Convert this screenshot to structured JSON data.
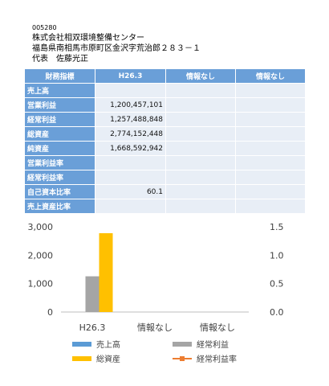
{
  "company": {
    "code": "005280",
    "name": "株式会社相双環境整備センター",
    "address": "福島県南相馬市原町区金沢字荒治郎２８３－１",
    "rep_title": "代表",
    "rep_name": "佐藤光正"
  },
  "table": {
    "headers": [
      "財務指標",
      "H26.3",
      "情報なし",
      "情報なし"
    ],
    "rows": [
      {
        "label": "売上高",
        "values": [
          "",
          "",
          ""
        ]
      },
      {
        "label": "営業利益",
        "values": [
          "1,200,457,101",
          "",
          ""
        ]
      },
      {
        "label": "経常利益",
        "values": [
          "1,257,488,848",
          "",
          ""
        ]
      },
      {
        "label": "総資産",
        "values": [
          "2,774,152,448",
          "",
          ""
        ]
      },
      {
        "label": "純資産",
        "values": [
          "1,668,592,942",
          "",
          ""
        ]
      },
      {
        "label": "営業利益率",
        "values": [
          "",
          "",
          ""
        ]
      },
      {
        "label": "経常利益率",
        "values": [
          "",
          "",
          ""
        ]
      },
      {
        "label": "自己資本比率",
        "values": [
          "60.1",
          "",
          ""
        ]
      },
      {
        "label": "売上資産比率",
        "values": [
          "",
          "",
          ""
        ]
      }
    ]
  },
  "chart_data": {
    "type": "bar",
    "categories": [
      "H26.3",
      "情報なし",
      "情報なし"
    ],
    "series": [
      {
        "name": "売上高",
        "kind": "bar",
        "axis": "left",
        "color": "#5b9bd5",
        "values": [
          null,
          null,
          null
        ]
      },
      {
        "name": "経常利益",
        "kind": "bar",
        "axis": "left",
        "color": "#a5a5a5",
        "values": [
          1257,
          null,
          null
        ]
      },
      {
        "name": "総資産",
        "kind": "bar",
        "axis": "left",
        "color": "#ffc000",
        "values": [
          2774,
          null,
          null
        ]
      },
      {
        "name": "経常利益率",
        "kind": "line",
        "axis": "right",
        "color": "#ed7d31",
        "values": [
          null,
          null,
          null
        ]
      }
    ],
    "y_left": {
      "range": [
        0,
        3000
      ],
      "ticks": [
        "0",
        "1,000",
        "2,000",
        "3,000"
      ]
    },
    "y_right": {
      "range": [
        0,
        1.5
      ],
      "ticks": [
        "0.0",
        "0.5",
        "1.0",
        "1.5"
      ]
    },
    "grid": false,
    "legend_position": "bottom"
  }
}
